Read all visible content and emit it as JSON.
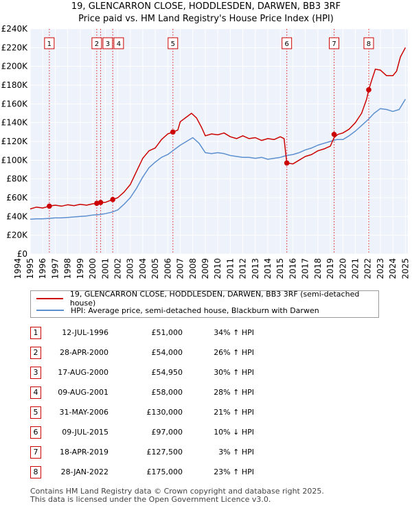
{
  "chart_data": {
    "type": "line",
    "title": "19, GLENCARRON CLOSE, HODDLESDEN, DARWEN, BB3 3RF",
    "subtitle": "Price paid vs. HM Land Registry's House Price Index (HPI)",
    "xlim": [
      1995.0,
      2025.2
    ],
    "ylim": [
      0,
      240000
    ],
    "y_ticks": [
      0,
      20000,
      40000,
      60000,
      80000,
      100000,
      120000,
      140000,
      160000,
      180000,
      200000,
      220000,
      240000
    ],
    "y_tick_labels": [
      "£0",
      "£20K",
      "£40K",
      "£60K",
      "£80K",
      "£100K",
      "£120K",
      "£140K",
      "£160K",
      "£180K",
      "£200K",
      "£220K",
      "£240K"
    ],
    "x_ticks": [
      1994,
      1995,
      1996,
      1997,
      1998,
      1999,
      2000,
      2001,
      2002,
      2003,
      2004,
      2005,
      2006,
      2007,
      2008,
      2009,
      2010,
      2011,
      2012,
      2013,
      2014,
      2015,
      2016,
      2017,
      2018,
      2019,
      2020,
      2021,
      2022,
      2023,
      2024,
      2025
    ],
    "x_tick_labels": [
      "1994",
      "1995",
      "1996",
      "1997",
      "1998",
      "1999",
      "2000",
      "2001",
      "2002",
      "2003",
      "2004",
      "2005",
      "2006",
      "2007",
      "2008",
      "2009",
      "2010",
      "2011",
      "2012",
      "2013",
      "2014",
      "2015",
      "2016",
      "2017",
      "2018",
      "2019",
      "2020",
      "2021",
      "2022",
      "2023",
      "2024",
      "2025"
    ],
    "series": [
      {
        "name": "19, GLENCARRON CLOSE, HODDLESDEN, DARWEN, BB3 3RF (semi-detached house)",
        "color": "#cc0000",
        "x": [
          1995.0,
          1995.5,
          1996.0,
          1996.53,
          1997.0,
          1997.5,
          1998.0,
          1998.5,
          1999.0,
          1999.5,
          2000.0,
          2000.32,
          2000.63,
          2001.0,
          2001.6,
          2002.0,
          2002.5,
          2003.0,
          2003.5,
          2004.0,
          2004.5,
          2005.0,
          2005.5,
          2006.0,
          2006.41,
          2006.8,
          2007.0,
          2007.5,
          2007.9,
          2008.3,
          2008.7,
          2009.0,
          2009.5,
          2010.0,
          2010.5,
          2011.0,
          2011.5,
          2012.0,
          2012.5,
          2013.0,
          2013.5,
          2014.0,
          2014.5,
          2015.0,
          2015.3,
          2015.52,
          2016.0,
          2016.5,
          2017.0,
          2017.5,
          2018.0,
          2018.5,
          2019.0,
          2019.3,
          2019.6,
          2020.0,
          2020.5,
          2021.0,
          2021.5,
          2021.9,
          2022.07,
          2022.3,
          2022.6,
          2023.0,
          2023.5,
          2024.0,
          2024.3,
          2024.6,
          2025.0
        ],
        "values": [
          48000,
          50000,
          49000,
          51000,
          52000,
          51000,
          52500,
          51500,
          53000,
          52000,
          53500,
          54000,
          54950,
          55000,
          58000,
          60000,
          66000,
          74000,
          88000,
          102000,
          110000,
          113000,
          122000,
          128000,
          130000,
          132000,
          141000,
          146000,
          150000,
          145000,
          135000,
          126000,
          128000,
          127000,
          129000,
          125000,
          123000,
          126000,
          123000,
          124000,
          121000,
          123000,
          122000,
          125000,
          123000,
          97000,
          96000,
          100000,
          104000,
          106000,
          110000,
          112000,
          115000,
          124000,
          127500,
          129000,
          133000,
          140000,
          150000,
          165000,
          175000,
          185000,
          197000,
          196000,
          190000,
          190000,
          195000,
          210000,
          220000
        ]
      },
      {
        "name": "HPI: Average price, semi-detached house, Blackburn with Darwen",
        "color": "#5b8fd0",
        "x": [
          1995.0,
          1995.5,
          1996.0,
          1996.5,
          1997.0,
          1997.5,
          1998.0,
          1998.5,
          1999.0,
          1999.5,
          2000.0,
          2000.5,
          2001.0,
          2001.5,
          2002.0,
          2002.5,
          2003.0,
          2003.5,
          2004.0,
          2004.5,
          2005.0,
          2005.5,
          2006.0,
          2006.5,
          2007.0,
          2007.5,
          2008.0,
          2008.5,
          2009.0,
          2009.5,
          2010.0,
          2010.5,
          2011.0,
          2011.5,
          2012.0,
          2012.5,
          2013.0,
          2013.5,
          2014.0,
          2014.5,
          2015.0,
          2015.5,
          2016.0,
          2016.5,
          2017.0,
          2017.5,
          2018.0,
          2018.5,
          2019.0,
          2019.5,
          2020.0,
          2020.5,
          2021.0,
          2021.5,
          2022.0,
          2022.5,
          2023.0,
          2023.5,
          2024.0,
          2024.5,
          2025.0
        ],
        "values": [
          37000,
          37500,
          37500,
          38000,
          38500,
          38500,
          39000,
          39500,
          40000,
          40500,
          41500,
          42000,
          43000,
          44500,
          47000,
          53000,
          60000,
          70000,
          82000,
          92000,
          98000,
          103000,
          106000,
          111000,
          116000,
          120000,
          124000,
          118000,
          108000,
          107000,
          108000,
          107000,
          105000,
          104000,
          103000,
          103000,
          102000,
          103000,
          101000,
          102000,
          103000,
          105000,
          106000,
          108000,
          111000,
          113000,
          116000,
          118000,
          120000,
          122000,
          122000,
          126000,
          131000,
          137000,
          143000,
          150000,
          155000,
          154000,
          152000,
          154000,
          165000
        ]
      }
    ],
    "annotations": [
      {
        "label": "1",
        "x": 1996.53,
        "price": 51000
      },
      {
        "label": "2",
        "x": 2000.32,
        "price": 54000
      },
      {
        "label": "3",
        "x": 2000.63,
        "price": 54950
      },
      {
        "label": "4",
        "x": 2001.6,
        "price": 58000
      },
      {
        "label": "5",
        "x": 2006.41,
        "price": 130000
      },
      {
        "label": "6",
        "x": 2015.52,
        "price": 97000
      },
      {
        "label": "7",
        "x": 2019.3,
        "price": 127500
      },
      {
        "label": "8",
        "x": 2022.07,
        "price": 175000
      }
    ]
  },
  "legend": {
    "property_label": "19, GLENCARRON CLOSE, HODDLESDEN, DARWEN, BB3 3RF (semi-detached house)",
    "hpi_label": "HPI: Average price, semi-detached house, Blackburn with Darwen"
  },
  "sales": [
    {
      "num": "1",
      "date": "12-JUL-1996",
      "price": "£51,000",
      "hpi": "34% ↑ HPI"
    },
    {
      "num": "2",
      "date": "28-APR-2000",
      "price": "£54,000",
      "hpi": "26% ↑ HPI"
    },
    {
      "num": "3",
      "date": "17-AUG-2000",
      "price": "£54,950",
      "hpi": "30% ↑ HPI"
    },
    {
      "num": "4",
      "date": "09-AUG-2001",
      "price": "£58,000",
      "hpi": "28% ↑ HPI"
    },
    {
      "num": "5",
      "date": "31-MAY-2006",
      "price": "£130,000",
      "hpi": "21% ↑ HPI"
    },
    {
      "num": "6",
      "date": "09-JUL-2015",
      "price": "£97,000",
      "hpi": "10% ↓ HPI"
    },
    {
      "num": "7",
      "date": "18-APR-2019",
      "price": "£127,500",
      "hpi": "3% ↑ HPI"
    },
    {
      "num": "8",
      "date": "28-JAN-2022",
      "price": "£175,000",
      "hpi": "23% ↑ HPI"
    }
  ],
  "footer": {
    "line1": "Contains HM Land Registry data © Crown copyright and database right 2025.",
    "line2": "This data is licensed under the Open Government Licence v3.0."
  }
}
